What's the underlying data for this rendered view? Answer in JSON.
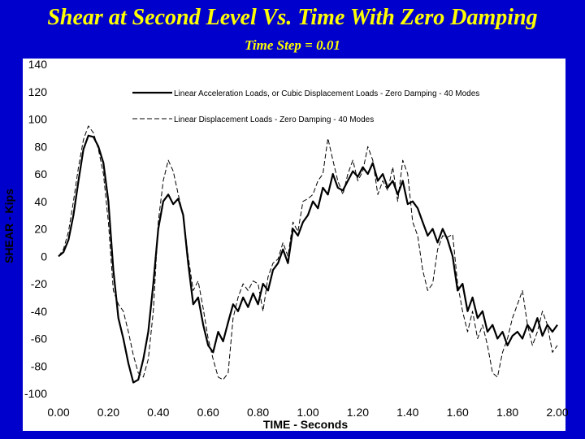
{
  "slide": {
    "title": "Shear at Second Level Vs. Time With Zero Damping",
    "subtitle": "Time Step = 0.01",
    "background_color": "#0000cc",
    "title_color": "#ffff00"
  },
  "chart_data": {
    "type": "line",
    "xlabel": "TIME - Seconds",
    "ylabel": "SHEAR - Kips",
    "xlim": [
      0.0,
      2.0
    ],
    "ylim": [
      -100,
      140
    ],
    "x_ticks": [
      "0.00",
      "0.20",
      "0.40",
      "0.60",
      "0.80",
      "1.00",
      "1.20",
      "1.40",
      "1.60",
      "1.80",
      "2.00"
    ],
    "y_ticks": [
      "140",
      "120",
      "100",
      "80",
      "60",
      "40",
      "20",
      "0",
      "-20",
      "-40",
      "-60",
      "-80",
      "-100"
    ],
    "legend_position": "top-right",
    "series": [
      {
        "name": "Linear Acceleration Loads, or Cubic Displacement Loads - Zero Damping - 40 Modes",
        "style": "solid",
        "points": [
          [
            0.0,
            0
          ],
          [
            0.02,
            3
          ],
          [
            0.04,
            12
          ],
          [
            0.06,
            30
          ],
          [
            0.08,
            55
          ],
          [
            0.1,
            78
          ],
          [
            0.12,
            88
          ],
          [
            0.14,
            87
          ],
          [
            0.16,
            80
          ],
          [
            0.18,
            68
          ],
          [
            0.2,
            40
          ],
          [
            0.22,
            -10
          ],
          [
            0.24,
            -45
          ],
          [
            0.26,
            -60
          ],
          [
            0.28,
            -78
          ],
          [
            0.3,
            -92
          ],
          [
            0.32,
            -90
          ],
          [
            0.34,
            -75
          ],
          [
            0.36,
            -55
          ],
          [
            0.38,
            -20
          ],
          [
            0.4,
            20
          ],
          [
            0.42,
            40
          ],
          [
            0.44,
            45
          ],
          [
            0.46,
            38
          ],
          [
            0.48,
            42
          ],
          [
            0.5,
            30
          ],
          [
            0.52,
            -5
          ],
          [
            0.54,
            -35
          ],
          [
            0.56,
            -30
          ],
          [
            0.58,
            -50
          ],
          [
            0.6,
            -65
          ],
          [
            0.62,
            -70
          ],
          [
            0.64,
            -55
          ],
          [
            0.66,
            -62
          ],
          [
            0.68,
            -48
          ],
          [
            0.7,
            -35
          ],
          [
            0.72,
            -40
          ],
          [
            0.74,
            -30
          ],
          [
            0.76,
            -37
          ],
          [
            0.78,
            -27
          ],
          [
            0.8,
            -35
          ],
          [
            0.82,
            -20
          ],
          [
            0.84,
            -25
          ],
          [
            0.86,
            -10
          ],
          [
            0.88,
            -5
          ],
          [
            0.9,
            5
          ],
          [
            0.92,
            -5
          ],
          [
            0.94,
            20
          ],
          [
            0.96,
            15
          ],
          [
            0.98,
            25
          ],
          [
            1.0,
            30
          ],
          [
            1.02,
            40
          ],
          [
            1.04,
            35
          ],
          [
            1.06,
            50
          ],
          [
            1.08,
            45
          ],
          [
            1.1,
            60
          ],
          [
            1.12,
            50
          ],
          [
            1.14,
            48
          ],
          [
            1.16,
            55
          ],
          [
            1.18,
            62
          ],
          [
            1.2,
            58
          ],
          [
            1.22,
            65
          ],
          [
            1.24,
            60
          ],
          [
            1.26,
            68
          ],
          [
            1.28,
            55
          ],
          [
            1.3,
            60
          ],
          [
            1.32,
            50
          ],
          [
            1.34,
            55
          ],
          [
            1.36,
            45
          ],
          [
            1.38,
            55
          ],
          [
            1.4,
            38
          ],
          [
            1.42,
            40
          ],
          [
            1.44,
            35
          ],
          [
            1.46,
            25
          ],
          [
            1.48,
            15
          ],
          [
            1.5,
            20
          ],
          [
            1.52,
            10
          ],
          [
            1.54,
            20
          ],
          [
            1.56,
            12
          ],
          [
            1.58,
            0
          ],
          [
            1.6,
            -25
          ],
          [
            1.62,
            -20
          ],
          [
            1.64,
            -40
          ],
          [
            1.66,
            -30
          ],
          [
            1.68,
            -45
          ],
          [
            1.7,
            -40
          ],
          [
            1.72,
            -55
          ],
          [
            1.74,
            -50
          ],
          [
            1.76,
            -60
          ],
          [
            1.78,
            -55
          ],
          [
            1.8,
            -65
          ],
          [
            1.82,
            -58
          ],
          [
            1.84,
            -55
          ],
          [
            1.86,
            -60
          ],
          [
            1.88,
            -50
          ],
          [
            1.9,
            -55
          ],
          [
            1.92,
            -45
          ],
          [
            1.94,
            -58
          ],
          [
            1.96,
            -50
          ],
          [
            1.98,
            -55
          ],
          [
            2.0,
            -50
          ]
        ]
      },
      {
        "name": "Linear Displacement Loads - Zero Damping - 40 Modes",
        "style": "dashed",
        "points": [
          [
            0.0,
            0
          ],
          [
            0.02,
            5
          ],
          [
            0.04,
            18
          ],
          [
            0.06,
            40
          ],
          [
            0.08,
            65
          ],
          [
            0.1,
            85
          ],
          [
            0.12,
            95
          ],
          [
            0.14,
            90
          ],
          [
            0.16,
            78
          ],
          [
            0.18,
            60
          ],
          [
            0.2,
            25
          ],
          [
            0.22,
            -25
          ],
          [
            0.24,
            -35
          ],
          [
            0.26,
            -40
          ],
          [
            0.28,
            -55
          ],
          [
            0.3,
            -72
          ],
          [
            0.32,
            -85
          ],
          [
            0.34,
            -88
          ],
          [
            0.36,
            -75
          ],
          [
            0.38,
            -40
          ],
          [
            0.4,
            25
          ],
          [
            0.42,
            55
          ],
          [
            0.44,
            70
          ],
          [
            0.46,
            62
          ],
          [
            0.48,
            45
          ],
          [
            0.5,
            30
          ],
          [
            0.52,
            0
          ],
          [
            0.54,
            -25
          ],
          [
            0.56,
            -18
          ],
          [
            0.58,
            -38
          ],
          [
            0.6,
            -60
          ],
          [
            0.62,
            -75
          ],
          [
            0.64,
            -88
          ],
          [
            0.66,
            -90
          ],
          [
            0.68,
            -85
          ],
          [
            0.7,
            -45
          ],
          [
            0.72,
            -30
          ],
          [
            0.74,
            -20
          ],
          [
            0.76,
            -25
          ],
          [
            0.78,
            -18
          ],
          [
            0.8,
            -20
          ],
          [
            0.82,
            -40
          ],
          [
            0.84,
            -15
          ],
          [
            0.86,
            -5
          ],
          [
            0.88,
            -2
          ],
          [
            0.9,
            10
          ],
          [
            0.92,
            0
          ],
          [
            0.94,
            25
          ],
          [
            0.96,
            18
          ],
          [
            0.98,
            40
          ],
          [
            1.0,
            42
          ],
          [
            1.02,
            45
          ],
          [
            1.04,
            55
          ],
          [
            1.06,
            60
          ],
          [
            1.08,
            86
          ],
          [
            1.1,
            70
          ],
          [
            1.12,
            55
          ],
          [
            1.14,
            45
          ],
          [
            1.16,
            60
          ],
          [
            1.18,
            70
          ],
          [
            1.2,
            55
          ],
          [
            1.22,
            62
          ],
          [
            1.24,
            80
          ],
          [
            1.26,
            70
          ],
          [
            1.28,
            45
          ],
          [
            1.3,
            55
          ],
          [
            1.32,
            48
          ],
          [
            1.34,
            65
          ],
          [
            1.36,
            40
          ],
          [
            1.38,
            70
          ],
          [
            1.4,
            60
          ],
          [
            1.42,
            25
          ],
          [
            1.44,
            15
          ],
          [
            1.46,
            -10
          ],
          [
            1.48,
            -25
          ],
          [
            1.5,
            -20
          ],
          [
            1.52,
            5
          ],
          [
            1.54,
            15
          ],
          [
            1.56,
            14
          ],
          [
            1.58,
            16
          ],
          [
            1.6,
            -20
          ],
          [
            1.62,
            -40
          ],
          [
            1.64,
            -55
          ],
          [
            1.66,
            -40
          ],
          [
            1.68,
            -60
          ],
          [
            1.7,
            -50
          ],
          [
            1.72,
            -65
          ],
          [
            1.74,
            -85
          ],
          [
            1.76,
            -88
          ],
          [
            1.78,
            -70
          ],
          [
            1.8,
            -60
          ],
          [
            1.82,
            -45
          ],
          [
            1.84,
            -35
          ],
          [
            1.86,
            -25
          ],
          [
            1.88,
            -50
          ],
          [
            1.9,
            -65
          ],
          [
            1.92,
            -55
          ],
          [
            1.94,
            -40
          ],
          [
            1.96,
            -50
          ],
          [
            1.98,
            -70
          ],
          [
            2.0,
            -65
          ]
        ]
      }
    ]
  }
}
